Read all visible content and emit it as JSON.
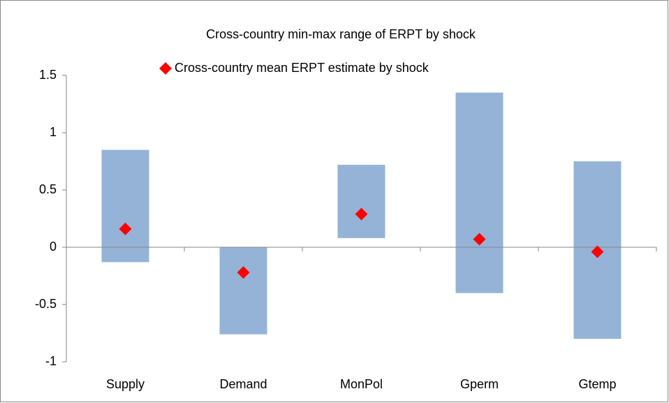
{
  "chart_data": {
    "type": "range",
    "categories": [
      "Supply",
      "Demand",
      "MonPol",
      "Gperm",
      "Gtemp"
    ],
    "series": [
      {
        "name": "Cross-country min-max range of ERPT by shock",
        "color": "#95b3d7",
        "low": [
          -0.13,
          -0.76,
          0.08,
          -0.4,
          -0.8
        ],
        "high": [
          0.85,
          0,
          0.72,
          1.35,
          0.75
        ]
      },
      {
        "name": "Cross-country mean ERPT estimate by shock",
        "color": "#ff0000",
        "values": [
          0.16,
          -0.22,
          0.29,
          0.07,
          -0.04
        ]
      }
    ],
    "ylim": [
      -1,
      1.5
    ],
    "yticks": [
      -1,
      -0.5,
      0,
      0.5,
      1,
      1.5
    ]
  }
}
